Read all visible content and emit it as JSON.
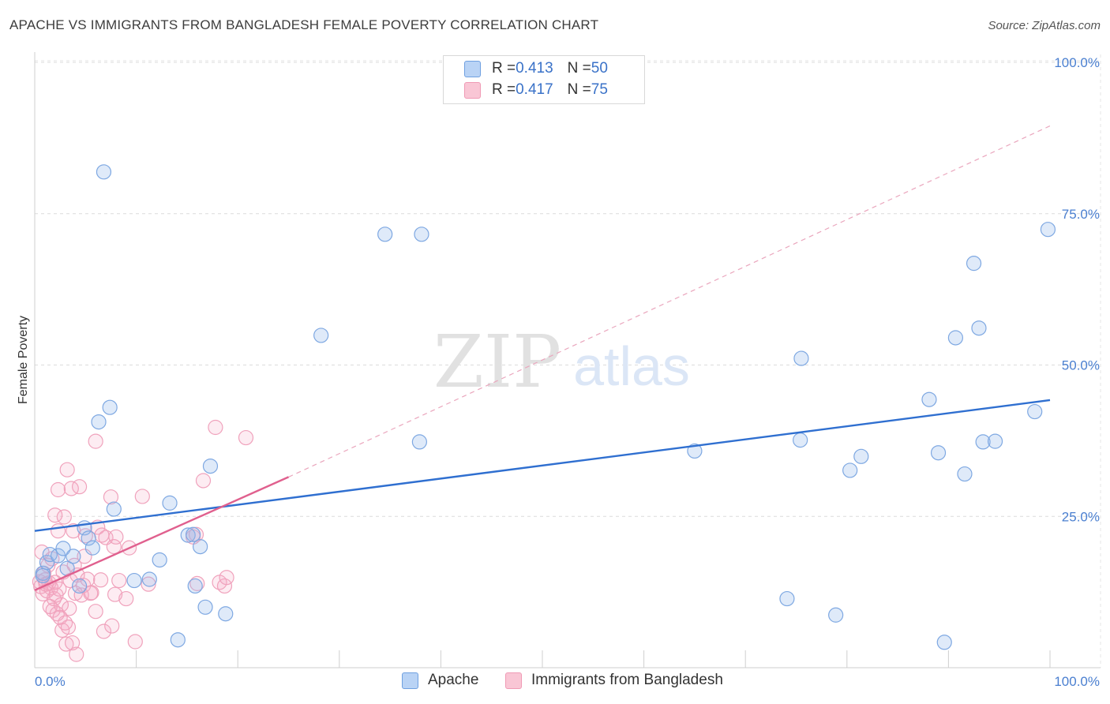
{
  "title": "APACHE VS IMMIGRANTS FROM BANGLADESH FEMALE POVERTY CORRELATION CHART",
  "source": "Source: ZipAtlas.com",
  "watermark": {
    "zip": "ZIP",
    "atlas": "atlas"
  },
  "legend": {
    "rows": [
      {
        "r_label": "R = ",
        "r_value": "0.413",
        "n_label": "N = ",
        "n_value": "50"
      },
      {
        "r_label": "R = ",
        "r_value": "0.417",
        "n_label": "N = ",
        "n_value": "75"
      }
    ]
  },
  "chart_data": {
    "type": "scatter",
    "title": "APACHE VS IMMIGRANTS FROM BANGLADESH FEMALE POVERTY CORRELATION CHART",
    "xlabel": "",
    "ylabel": "Female Poverty",
    "xlim": [
      0,
      100
    ],
    "ylim": [
      0,
      100
    ],
    "x_tick_labels": [
      "0.0%",
      "100.0%"
    ],
    "y_ticks": [
      25,
      50,
      75,
      100
    ],
    "y_tick_labels": [
      "25.0%",
      "50.0%",
      "75.0%",
      "100.0%"
    ],
    "grid": true,
    "legend_position": "top-center",
    "colors": {
      "apache": "#6fa0e0",
      "bangladesh": "#f09ab5",
      "apache_line": "#2f6fd0",
      "bangladesh_line": "#e0608e"
    },
    "series": [
      {
        "name": "Apache",
        "r": 0.413,
        "n": 50,
        "trend": {
          "x0": 0,
          "y0": 22.6,
          "x1": 100,
          "y1": 44.2
        },
        "points": [
          [
            0.8,
            15.6
          ],
          [
            0.8,
            15.2
          ],
          [
            1.2,
            17.4
          ],
          [
            1.5,
            18.7
          ],
          [
            2.3,
            18.5
          ],
          [
            2.8,
            19.7
          ],
          [
            3.2,
            16.4
          ],
          [
            3.8,
            18.4
          ],
          [
            4.4,
            13.5
          ],
          [
            4.9,
            23.1
          ],
          [
            5.3,
            21.4
          ],
          [
            5.7,
            19.8
          ],
          [
            6.3,
            40.6
          ],
          [
            6.8,
            81.9
          ],
          [
            7.4,
            43.0
          ],
          [
            7.8,
            26.2
          ],
          [
            9.8,
            14.4
          ],
          [
            11.3,
            14.6
          ],
          [
            12.3,
            17.8
          ],
          [
            13.3,
            27.2
          ],
          [
            14.1,
            4.6
          ],
          [
            15.1,
            21.9
          ],
          [
            15.6,
            22.0
          ],
          [
            15.8,
            13.5
          ],
          [
            16.3,
            20.0
          ],
          [
            16.8,
            10.0
          ],
          [
            17.3,
            33.3
          ],
          [
            18.8,
            8.9
          ],
          [
            28.2,
            54.9
          ],
          [
            34.5,
            71.6
          ],
          [
            38.1,
            71.6
          ],
          [
            37.9,
            37.3
          ],
          [
            65.0,
            35.8
          ],
          [
            74.1,
            11.4
          ],
          [
            75.5,
            51.1
          ],
          [
            75.4,
            37.6
          ],
          [
            78.9,
            8.7
          ],
          [
            80.3,
            32.6
          ],
          [
            81.4,
            34.9
          ],
          [
            88.1,
            44.3
          ],
          [
            89.0,
            35.5
          ],
          [
            89.6,
            4.2
          ],
          [
            90.7,
            54.5
          ],
          [
            91.6,
            32.0
          ],
          [
            92.5,
            66.8
          ],
          [
            93.0,
            56.1
          ],
          [
            93.4,
            37.3
          ],
          [
            94.6,
            37.4
          ],
          [
            98.5,
            42.3
          ],
          [
            99.8,
            72.4
          ]
        ]
      },
      {
        "name": "Immigrants from Bangladesh",
        "r": 0.417,
        "n": 75,
        "trend": {
          "x0": 0,
          "y0": 12.8,
          "x1": 25,
          "y1": 31.5
        },
        "trend_extension": {
          "x0": 25,
          "y0": 31.5,
          "x1": 100,
          "y1": 89.5
        },
        "points": [
          [
            0.5,
            14.2
          ],
          [
            0.6,
            13.4
          ],
          [
            0.7,
            19.1
          ],
          [
            0.8,
            12.2
          ],
          [
            0.9,
            15.6
          ],
          [
            1.0,
            14.5
          ],
          [
            1.1,
            13.8
          ],
          [
            1.2,
            12.7
          ],
          [
            1.3,
            16.9
          ],
          [
            1.4,
            14.0
          ],
          [
            1.5,
            10.1
          ],
          [
            1.6,
            13.2
          ],
          [
            1.7,
            18.0
          ],
          [
            1.8,
            9.5
          ],
          [
            1.9,
            11.4
          ],
          [
            2.0,
            25.2
          ],
          [
            2.0,
            14.1
          ],
          [
            2.1,
            12.0
          ],
          [
            2.2,
            8.9
          ],
          [
            2.3,
            22.6
          ],
          [
            2.3,
            29.4
          ],
          [
            2.4,
            13.0
          ],
          [
            2.5,
            8.3
          ],
          [
            2.6,
            10.4
          ],
          [
            2.7,
            6.2
          ],
          [
            2.8,
            15.8
          ],
          [
            2.9,
            24.9
          ],
          [
            3.0,
            7.4
          ],
          [
            3.1,
            3.9
          ],
          [
            3.2,
            32.7
          ],
          [
            3.3,
            6.7
          ],
          [
            3.4,
            9.8
          ],
          [
            3.5,
            14.4
          ],
          [
            3.6,
            29.6
          ],
          [
            3.7,
            4.1
          ],
          [
            3.8,
            22.6
          ],
          [
            3.9,
            16.9
          ],
          [
            4.0,
            12.3
          ],
          [
            4.1,
            2.2
          ],
          [
            4.2,
            15.3
          ],
          [
            4.4,
            29.9
          ],
          [
            4.6,
            12.0
          ],
          [
            4.8,
            13.6
          ],
          [
            4.9,
            18.4
          ],
          [
            5.0,
            21.8
          ],
          [
            5.2,
            14.6
          ],
          [
            5.5,
            12.3
          ],
          [
            5.6,
            12.4
          ],
          [
            6.0,
            9.3
          ],
          [
            6.0,
            37.4
          ],
          [
            6.2,
            23.2
          ],
          [
            6.5,
            14.5
          ],
          [
            6.6,
            21.9
          ],
          [
            6.8,
            6.0
          ],
          [
            7.0,
            21.5
          ],
          [
            7.5,
            28.2
          ],
          [
            7.6,
            6.9
          ],
          [
            7.8,
            20.0
          ],
          [
            7.9,
            12.1
          ],
          [
            8.0,
            21.6
          ],
          [
            8.3,
            14.4
          ],
          [
            9.0,
            11.4
          ],
          [
            9.3,
            19.8
          ],
          [
            9.9,
            4.3
          ],
          [
            10.6,
            28.3
          ],
          [
            11.2,
            13.8
          ],
          [
            15.6,
            21.6
          ],
          [
            15.9,
            22.0
          ],
          [
            16.0,
            13.9
          ],
          [
            16.6,
            30.9
          ],
          [
            17.8,
            39.7
          ],
          [
            18.2,
            14.1
          ],
          [
            18.7,
            13.5
          ],
          [
            18.9,
            14.9
          ],
          [
            20.8,
            38.0
          ]
        ]
      }
    ]
  },
  "bottom_legend": {
    "items": [
      "Apache",
      "Immigrants from Bangladesh"
    ]
  }
}
